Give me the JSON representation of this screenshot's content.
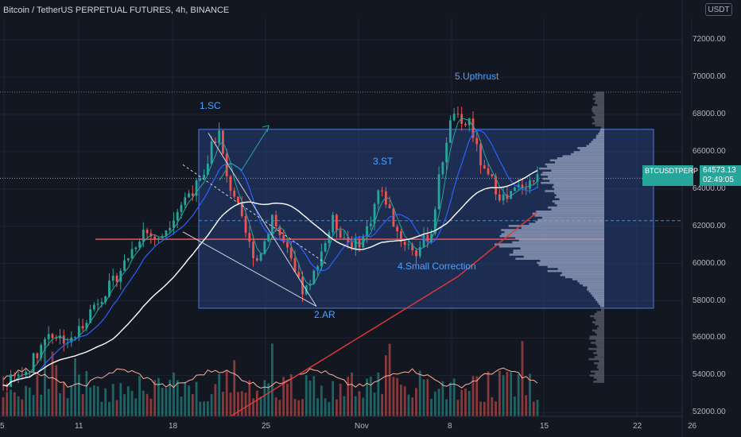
{
  "title": "Bitcoin / TetherUS PERPETUAL FUTURES, 4h, BINANCE",
  "currency": "USDT",
  "symbol_tag": "BTCUSDTPERP",
  "last_price": "64573.13",
  "countdown": "02:49:05",
  "colors": {
    "background": "#131722",
    "up": "#26a69a",
    "down": "#ef5350",
    "range_box": "#2a4a8c",
    "annotation": "#4da3ff",
    "ma_fast": "#26a69a",
    "ma_mid": "#2962ff",
    "ma_slow": "#ffffff",
    "ma_long": "#e53935",
    "volume_ma": "#ffb199",
    "volume_profile": "#9aa5c4"
  },
  "annotations": [
    "1.SC",
    "2.AR",
    "3.ST",
    "4.Small Correction",
    "5.Upthrust"
  ],
  "chart_data": {
    "type": "candlestick",
    "y_axis": {
      "ticks": [
        52000,
        54000,
        56000,
        58000,
        60000,
        62000,
        64000,
        66000,
        68000,
        70000,
        72000
      ],
      "tick_labels": [
        "52000.00",
        "54000.00",
        "56000.00",
        "58000.00",
        "60000.00",
        "62000.00",
        "64000.00",
        "66000.00",
        "68000.00",
        "70000.00",
        "72000.00"
      ],
      "range": [
        51800,
        73200
      ]
    },
    "x_axis": {
      "tick_labels": [
        "5",
        "11",
        "18",
        "25",
        "Nov",
        "8",
        "15",
        "22",
        "26"
      ]
    },
    "trading_range": {
      "top": 67200,
      "bottom": 57600
    },
    "levels": {
      "upthrust_high": 69200,
      "current_price": 64573.13,
      "support": 61300,
      "dashed_level": 62300
    },
    "price_path": [
      [
        0,
        53500
      ],
      [
        6,
        54200
      ],
      [
        12,
        56300
      ],
      [
        18,
        55800
      ],
      [
        24,
        57800
      ],
      [
        29,
        59000
      ],
      [
        33,
        60400
      ],
      [
        37,
        61800
      ],
      [
        41,
        61200
      ],
      [
        45,
        62600
      ],
      [
        49,
        63800
      ],
      [
        53,
        64500
      ],
      [
        55,
        66500
      ],
      [
        57,
        67000
      ],
      [
        59,
        64500
      ],
      [
        61,
        63700
      ],
      [
        63,
        62200
      ],
      [
        65,
        61000
      ],
      [
        67,
        60200
      ],
      [
        69,
        61200
      ],
      [
        71,
        62600
      ],
      [
        73,
        61500
      ],
      [
        75,
        60600
      ],
      [
        77,
        59400
      ],
      [
        79,
        58500
      ],
      [
        81,
        58700
      ],
      [
        83,
        60200
      ],
      [
        85,
        61200
      ],
      [
        87,
        62300
      ],
      [
        89,
        61700
      ],
      [
        91,
        61200
      ],
      [
        93,
        61000
      ],
      [
        95,
        61400
      ],
      [
        97,
        62400
      ],
      [
        99,
        63900
      ],
      [
        101,
        63400
      ],
      [
        103,
        62200
      ],
      [
        105,
        61300
      ],
      [
        107,
        61000
      ],
      [
        109,
        60600
      ],
      [
        111,
        61200
      ],
      [
        113,
        61700
      ],
      [
        115,
        64500
      ],
      [
        117,
        66700
      ],
      [
        119,
        68200
      ],
      [
        121,
        67200
      ],
      [
        123,
        67700
      ],
      [
        125,
        66100
      ],
      [
        127,
        64800
      ],
      [
        129,
        64400
      ],
      [
        131,
        63700
      ],
      [
        133,
        63400
      ],
      [
        135,
        63900
      ],
      [
        137,
        64200
      ],
      [
        139,
        64400
      ],
      [
        141,
        64573
      ]
    ],
    "volume_scale_max": 100
  }
}
